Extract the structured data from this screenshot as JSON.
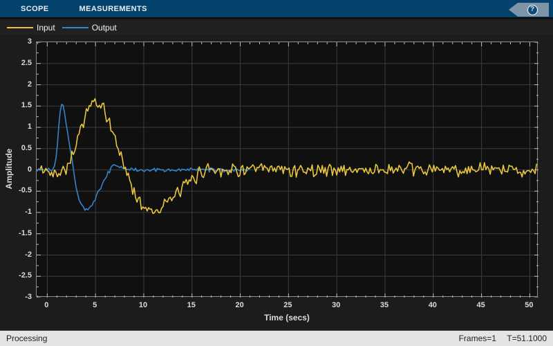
{
  "toolbar": {
    "tabs": [
      {
        "label": "SCOPE"
      },
      {
        "label": "MEASUREMENTS"
      }
    ],
    "help_label": "?"
  },
  "legend": {
    "items": [
      {
        "label": "Input",
        "color": "#e9c63d"
      },
      {
        "label": "Output",
        "color": "#3385c9"
      }
    ]
  },
  "status_bar": {
    "left": "Processing",
    "frames": "Frames=1",
    "time": "T=51.1000"
  },
  "chart_data": {
    "type": "line",
    "title": "",
    "xlabel": "Time (secs)",
    "ylabel": "Amplitude",
    "xlim": [
      -1.1,
      50.9
    ],
    "ylim": [
      -3,
      3
    ],
    "grid": true,
    "legend_position": "top-left-bar",
    "x_ticks": [
      0,
      5,
      10,
      15,
      20,
      25,
      30,
      35,
      40,
      45,
      50
    ],
    "x_minor_step": 1,
    "y_ticks": [
      3,
      2.5,
      2,
      1.5,
      1,
      0.5,
      0,
      -0.5,
      -1,
      -1.5,
      -2,
      -2.5,
      -3
    ],
    "y_minor_step": 0.25,
    "colors": {
      "axes_background": "#101010",
      "figure_background": "#1c1c1c",
      "grid": "#3c3c3c",
      "axis_border": "#8c8c8c",
      "tick": "#c0c0c0",
      "tick_label": "#dbdbdb"
    },
    "series": [
      {
        "name": "Output",
        "color": "#3385c9",
        "t_start": -1.05,
        "t_end": 21.0,
        "sample_step": 0.15,
        "noise_amplitude": 0.04,
        "noise_seed": 1337,
        "keypoints": [
          [
            -1.05,
            0
          ],
          [
            0.5,
            0.01
          ],
          [
            0.8,
            0.1
          ],
          [
            1.0,
            0.45
          ],
          [
            1.2,
            1.05
          ],
          [
            1.4,
            1.5
          ],
          [
            1.55,
            1.6
          ],
          [
            1.75,
            1.45
          ],
          [
            2.0,
            1.05
          ],
          [
            2.2,
            0.75
          ],
          [
            2.5,
            0.3
          ],
          [
            2.7,
            0.05
          ],
          [
            2.9,
            -0.25
          ],
          [
            3.1,
            -0.5
          ],
          [
            3.4,
            -0.75
          ],
          [
            3.7,
            -0.87
          ],
          [
            4.0,
            -0.92
          ],
          [
            4.4,
            -0.9
          ],
          [
            4.7,
            -0.82
          ],
          [
            5.0,
            -0.68
          ],
          [
            5.3,
            -0.52
          ],
          [
            5.6,
            -0.38
          ],
          [
            6.0,
            -0.2
          ],
          [
            6.3,
            -0.08
          ],
          [
            6.6,
            0.05
          ],
          [
            6.9,
            0.12
          ],
          [
            7.3,
            0.1
          ],
          [
            7.7,
            0.06
          ],
          [
            8.2,
            0.02
          ],
          [
            9.0,
            0.0
          ],
          [
            21.0,
            0.0
          ]
        ]
      },
      {
        "name": "Input",
        "color": "#e9c63d",
        "t_start": -0.75,
        "t_end": 50.8,
        "sample_step": 0.15,
        "noise_amplitude": 0.13,
        "noise_seed": 42,
        "keypoints": [
          [
            -0.75,
            0.0
          ],
          [
            0.2,
            -0.05
          ],
          [
            0.5,
            -0.12
          ],
          [
            0.8,
            0.05
          ],
          [
            1.2,
            -0.08
          ],
          [
            1.6,
            0.02
          ],
          [
            2.0,
            0.08
          ],
          [
            2.3,
            0.2
          ],
          [
            2.6,
            0.35
          ],
          [
            3.0,
            0.62
          ],
          [
            3.4,
            0.92
          ],
          [
            3.8,
            1.2
          ],
          [
            4.2,
            1.42
          ],
          [
            4.6,
            1.55
          ],
          [
            4.9,
            1.6
          ],
          [
            5.2,
            1.48
          ],
          [
            5.5,
            1.52
          ],
          [
            5.8,
            1.42
          ],
          [
            6.2,
            1.22
          ],
          [
            6.6,
            1.0
          ],
          [
            7.0,
            0.75
          ],
          [
            7.4,
            0.5
          ],
          [
            7.8,
            0.22
          ],
          [
            8.2,
            -0.05
          ],
          [
            8.6,
            -0.3
          ],
          [
            9.0,
            -0.5
          ],
          [
            9.4,
            -0.68
          ],
          [
            9.8,
            -0.82
          ],
          [
            10.2,
            -0.9
          ],
          [
            10.7,
            -0.95
          ],
          [
            11.2,
            -0.93
          ],
          [
            11.7,
            -0.88
          ],
          [
            12.2,
            -0.8
          ],
          [
            12.7,
            -0.72
          ],
          [
            13.2,
            -0.62
          ],
          [
            13.7,
            -0.5
          ],
          [
            14.2,
            -0.4
          ],
          [
            14.7,
            -0.3
          ],
          [
            15.2,
            -0.2
          ],
          [
            15.7,
            -0.1
          ],
          [
            16.2,
            -0.02
          ],
          [
            16.7,
            0.04
          ],
          [
            17.5,
            0.02
          ],
          [
            18.0,
            0.0
          ],
          [
            50.8,
            0.0
          ]
        ]
      }
    ]
  }
}
